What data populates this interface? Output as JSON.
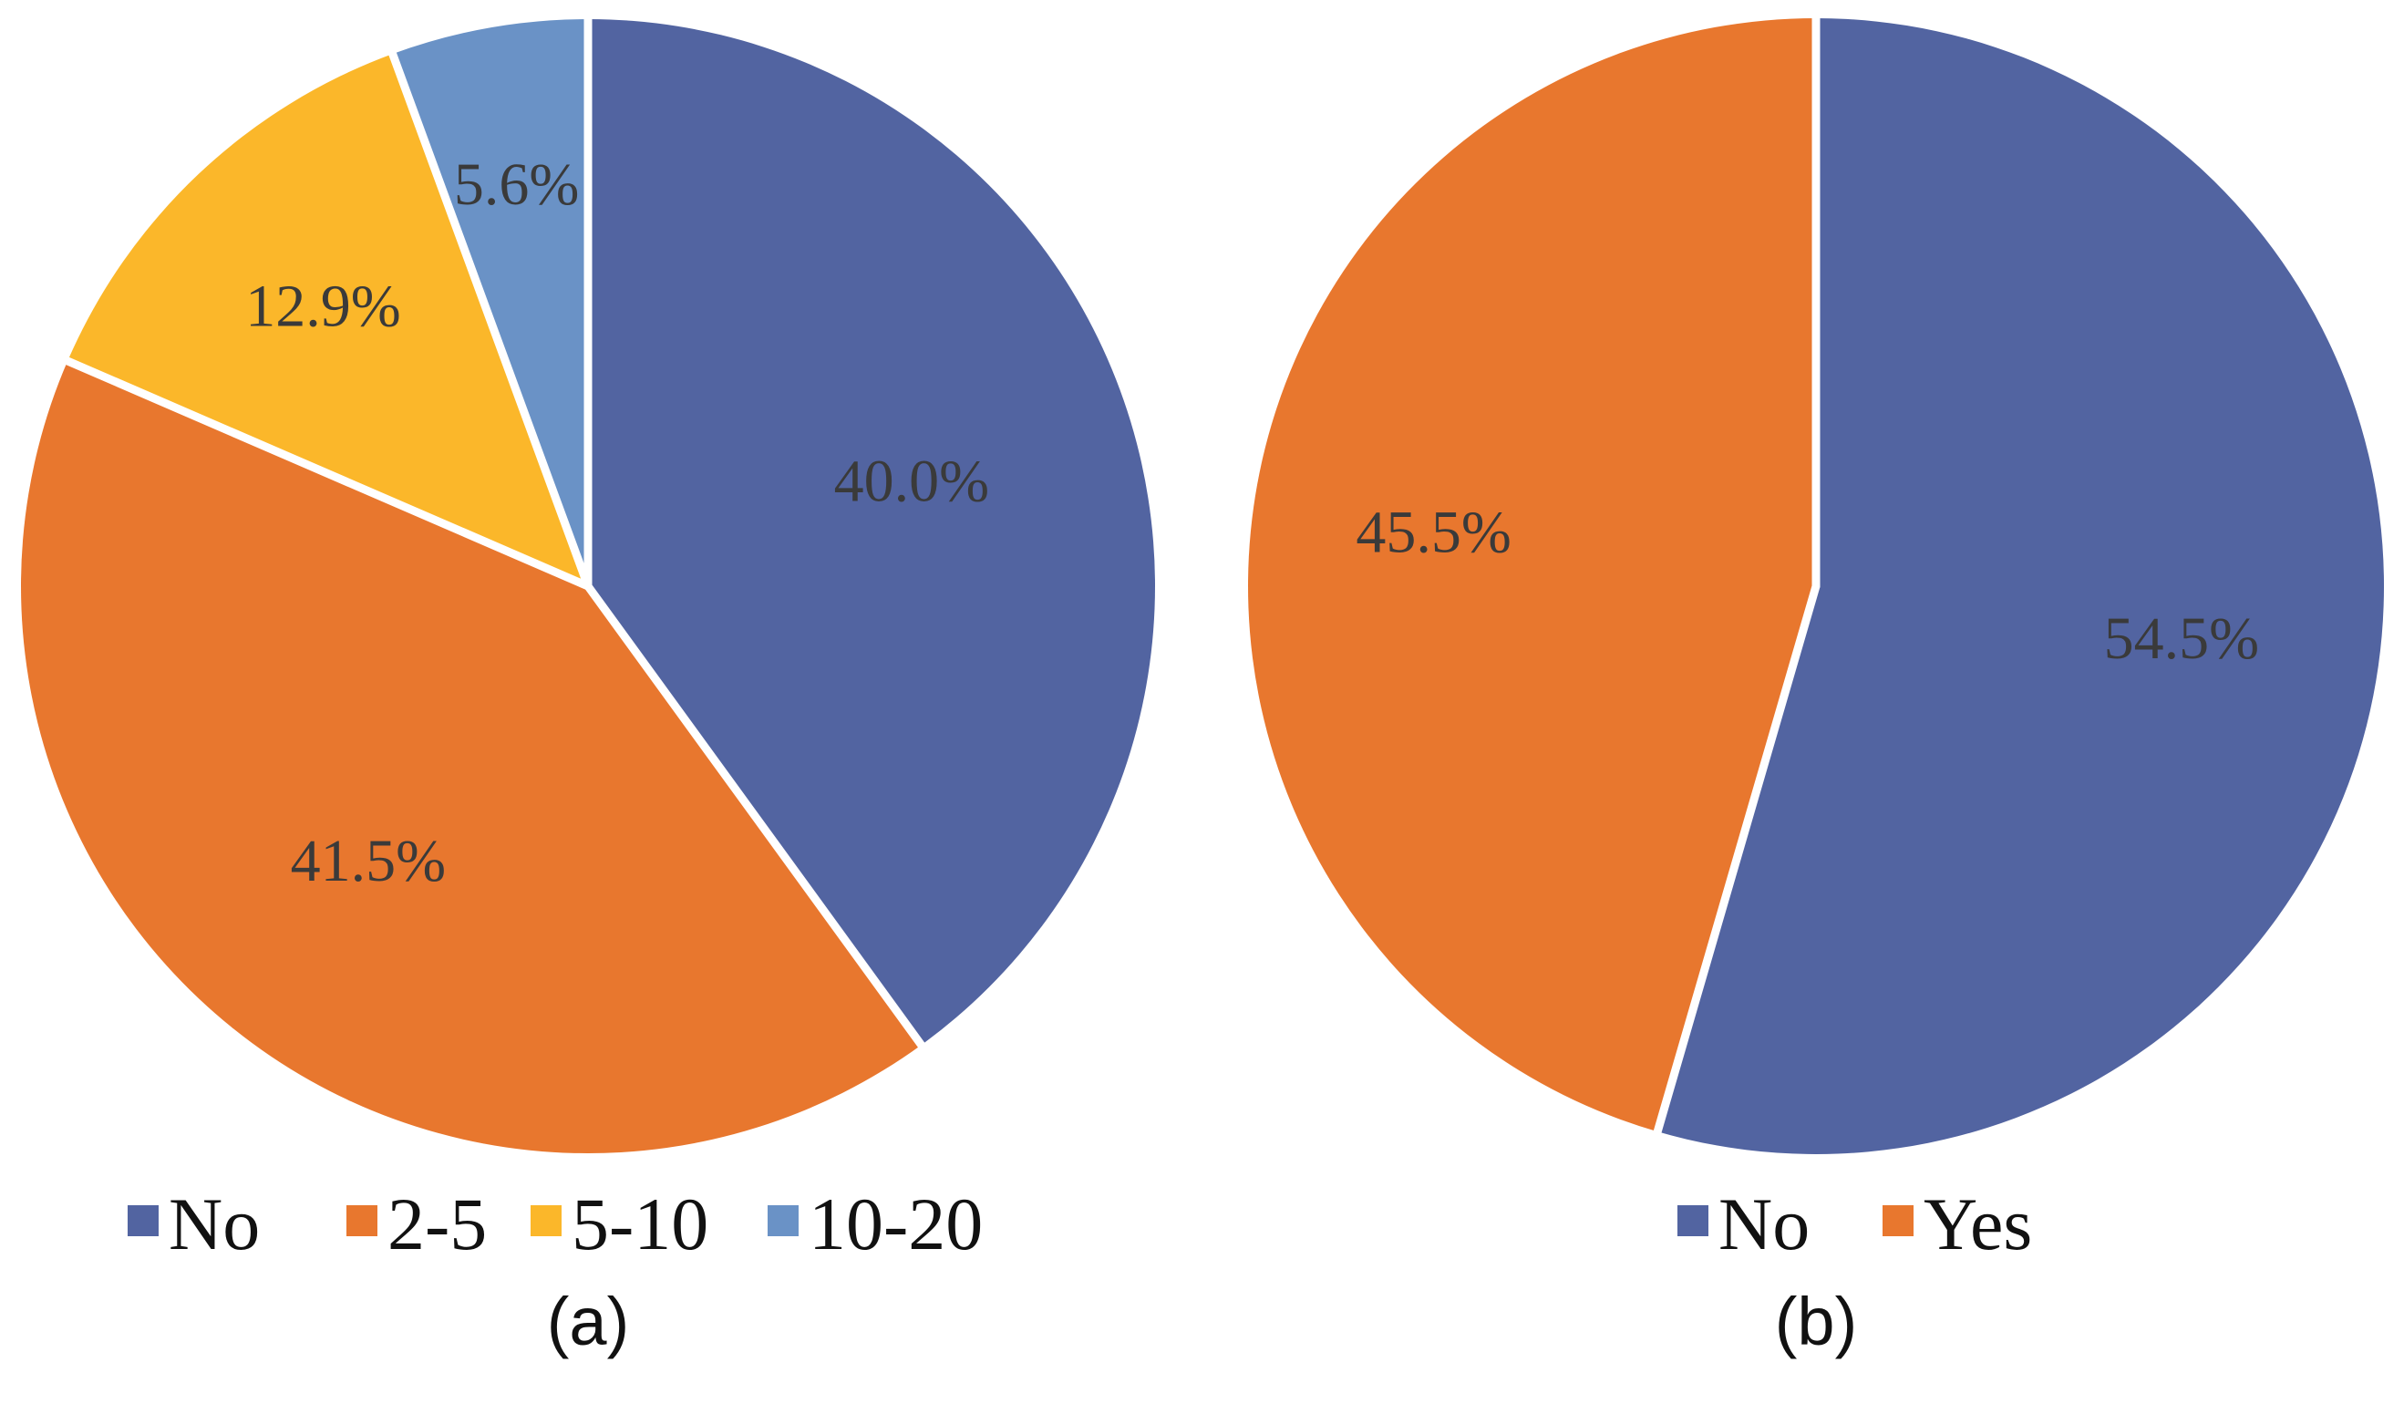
{
  "chart_data": [
    {
      "type": "pie",
      "panel_label": "(a)",
      "legend_position": "bottom",
      "start_angle_deg": 0,
      "direction": "clockwise",
      "slices": [
        {
          "name": "No",
          "value": 40.0,
          "label": "40.0%",
          "color": "#5264a1"
        },
        {
          "name": "2-5",
          "value": 41.5,
          "label": "41.5%",
          "color": "#e8772e"
        },
        {
          "name": "5-10",
          "value": 12.9,
          "label": "12.9%",
          "color": "#fbb72a"
        },
        {
          "name": "10-20",
          "value": 5.6,
          "label": "5.6%",
          "color": "#6a92c6"
        }
      ]
    },
    {
      "type": "pie",
      "panel_label": "(b)",
      "legend_position": "bottom",
      "start_angle_deg": 0,
      "direction": "clockwise",
      "slices": [
        {
          "name": "No",
          "value": 54.5,
          "label": "54.5%",
          "color": "#5264a1"
        },
        {
          "name": "Yes",
          "value": 45.5,
          "label": "45.5%",
          "color": "#e8772e"
        }
      ]
    }
  ],
  "colors": {
    "separator": "#ffffff",
    "label_text": "#3a3a3a",
    "legend_text": "#111111"
  }
}
